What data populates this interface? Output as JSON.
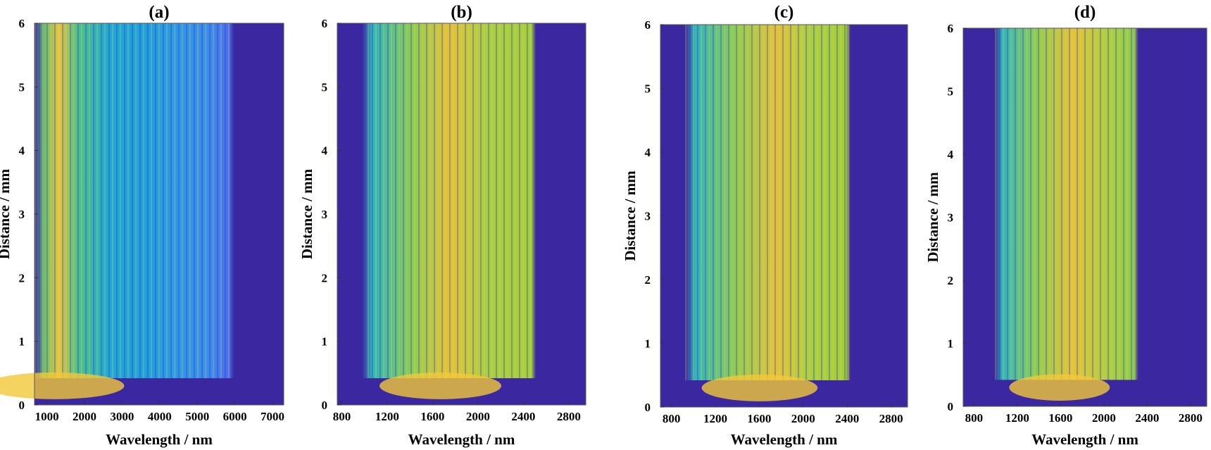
{
  "chart_data": [
    {
      "type": "heatmap",
      "title": "(a)",
      "xlabel": "Wavelength / nm",
      "ylabel": "Distance / mm",
      "xlim": [
        670,
        7300
      ],
      "xticks": [
        1000,
        2000,
        3000,
        4000,
        5000,
        6000,
        7000
      ],
      "ylim": [
        0,
        6
      ],
      "yticks": [
        0,
        1,
        2,
        3,
        4,
        5,
        6
      ]
    },
    {
      "type": "heatmap",
      "title": "(b)",
      "xlabel": "Wavelength / nm",
      "ylabel": "Distance / mm",
      "xlim": [
        760,
        2950
      ],
      "xticks": [
        800,
        1200,
        1600,
        2000,
        2400,
        2800
      ],
      "ylim": [
        0,
        6
      ],
      "yticks": [
        0,
        1,
        2,
        3,
        4,
        5,
        6
      ]
    },
    {
      "type": "heatmap",
      "title": "(c)",
      "xlabel": "Wavelength / nm",
      "ylabel": "Distance / mm",
      "xlim": [
        700,
        2950
      ],
      "xticks": [
        800,
        1200,
        1600,
        2000,
        2400,
        2800
      ],
      "ylim": [
        0,
        6
      ],
      "yticks": [
        0,
        1,
        2,
        3,
        4,
        5,
        6
      ]
    },
    {
      "type": "heatmap",
      "title": "(d)",
      "xlabel": "Wavelength / nm",
      "ylabel": "Distance / mm",
      "xlim": [
        700,
        2950
      ],
      "xticks": [
        800,
        1200,
        1600,
        2000,
        2400,
        2800
      ],
      "ylim": [
        0,
        6
      ],
      "yticks": [
        0,
        1,
        2,
        3,
        4,
        5,
        6
      ]
    }
  ]
}
